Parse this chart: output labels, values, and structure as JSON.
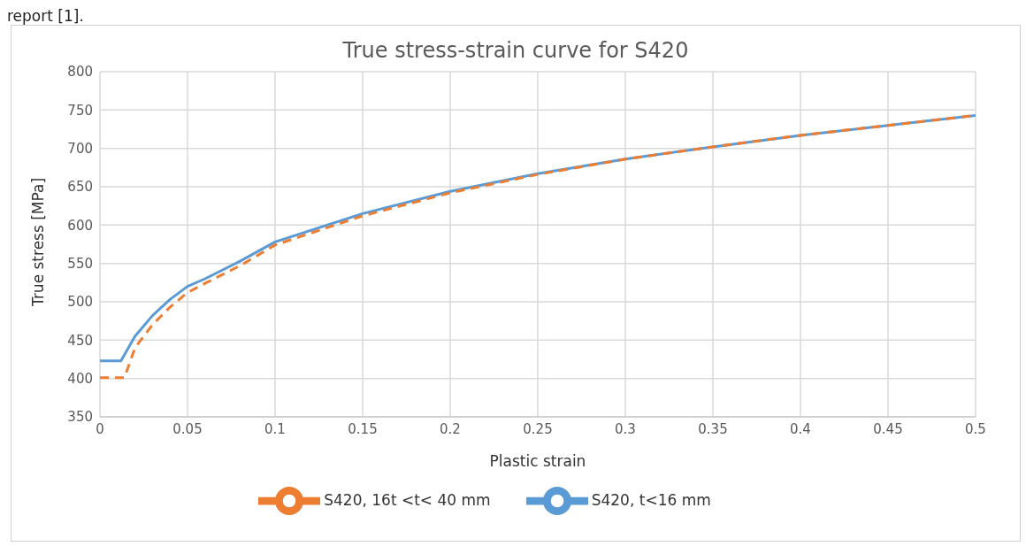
{
  "chart_data": {
    "type": "line",
    "title": "True stress-strain curve for S420",
    "xlabel": "Plastic strain",
    "ylabel": "True stress [MPa]",
    "annotations": [
      "report [1]."
    ],
    "xlim": [
      0,
      0.5
    ],
    "xticks": [
      0,
      0.05,
      0.1,
      0.15,
      0.2,
      0.25,
      0.3,
      0.35,
      0.4,
      0.45,
      0.5
    ],
    "ylim": [
      350,
      800
    ],
    "yticks": [
      350,
      400,
      450,
      500,
      550,
      600,
      650,
      700,
      750,
      800
    ],
    "grid": true,
    "legend": "bottom",
    "marker": "none",
    "series": [
      {
        "name": "S420, t<16 mm",
        "color": "#5b9bd5",
        "line_style": "solid",
        "x": [
          0,
          0.012,
          0.02,
          0.03,
          0.04,
          0.05,
          0.06,
          0.08,
          0.1,
          0.15,
          0.2,
          0.25,
          0.3,
          0.35,
          0.4,
          0.45,
          0.5
        ],
        "values": [
          423,
          423,
          455,
          482,
          503,
          520,
          530,
          553,
          578,
          615,
          644,
          667,
          686,
          702,
          717,
          730,
          743
        ]
      },
      {
        "name": "S420, 16t <t< 40 mm",
        "color": "#ed7d31",
        "line_style": "dashed",
        "x": [
          0,
          0.014,
          0.02,
          0.03,
          0.04,
          0.05,
          0.06,
          0.08,
          0.1,
          0.15,
          0.2,
          0.25,
          0.3,
          0.35,
          0.4,
          0.45,
          0.5
        ],
        "values": [
          401,
          401,
          440,
          470,
          493,
          512,
          524,
          547,
          574,
          612,
          642,
          666,
          686,
          702,
          717,
          730,
          743
        ]
      }
    ]
  }
}
